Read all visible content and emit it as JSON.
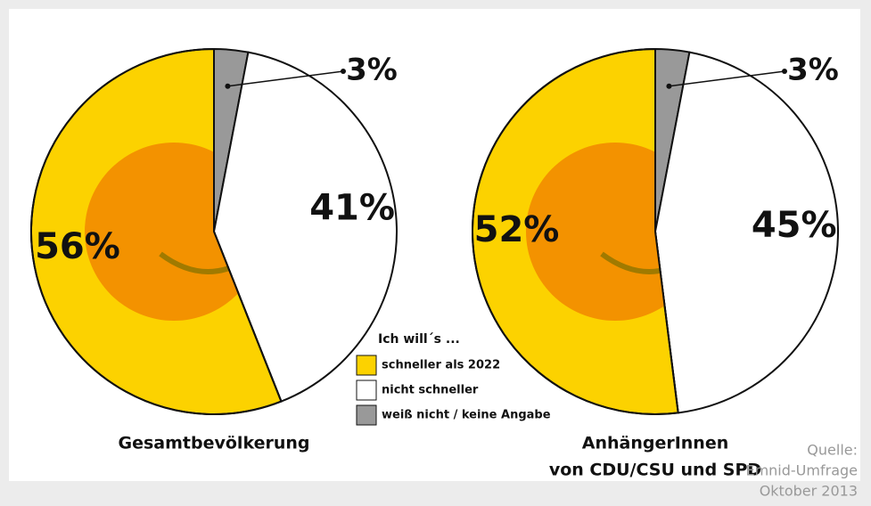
{
  "chart_data": [
    {
      "type": "pie",
      "title": [
        "Gesamtbevölkerung"
      ],
      "categories": [
        "schneller als 2022",
        "nicht schneller",
        "weiß nicht / keine Angabe"
      ],
      "values": [
        56,
        41,
        3
      ],
      "value_labels": [
        "56%",
        "41%",
        "3%"
      ],
      "colors": [
        "#fcd200",
        "#ffffff",
        "#999999"
      ]
    },
    {
      "type": "pie",
      "title": [
        "AnhängerInnen",
        "von CDU/CSU und SPD"
      ],
      "categories": [
        "schneller als 2022",
        "nicht schneller",
        "weiß nicht / keine Angabe"
      ],
      "values": [
        52,
        45,
        3
      ],
      "value_labels": [
        "52%",
        "45%",
        "3%"
      ],
      "colors": [
        "#fcd200",
        "#ffffff",
        "#999999"
      ]
    }
  ],
  "legend_title": "Ich will´s ...",
  "source": [
    "Quelle:",
    "Emnid-Umfrage",
    "Oktober 2013"
  ]
}
